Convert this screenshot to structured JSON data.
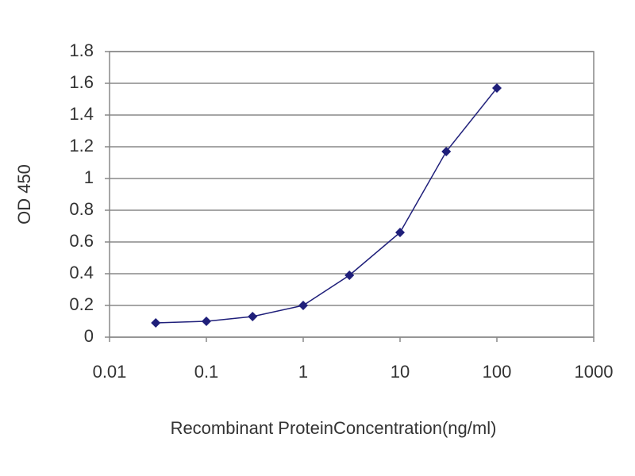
{
  "chart_data": {
    "type": "line",
    "x_label": "Recombinant ProteinConcentration(ng/ml)",
    "y_label": "OD 450",
    "x": [
      0.03,
      0.1,
      0.3,
      1,
      3,
      10,
      30,
      100
    ],
    "series": [
      {
        "color": "#1f1f7a",
        "values": [
          0.09,
          0.1,
          0.13,
          0.2,
          0.39,
          0.66,
          1.17,
          1.57
        ]
      }
    ],
    "xscale": "log",
    "xlim": [
      0.01,
      1000
    ],
    "xticks": [
      0.01,
      0.1,
      1,
      10,
      100,
      1000
    ],
    "ylim": [
      0,
      1.8
    ],
    "yticks": [
      0,
      0.2,
      0.4,
      0.6,
      0.8,
      1,
      1.2,
      1.4,
      1.6,
      1.8
    ],
    "grid": true
  }
}
